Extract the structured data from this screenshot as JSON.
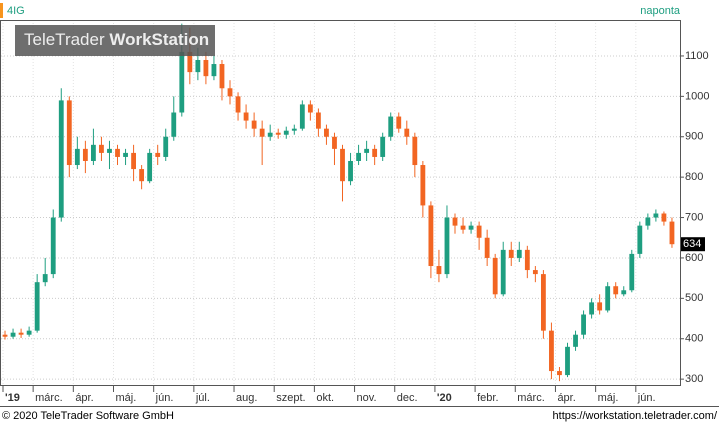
{
  "chart_data": {
    "type": "candlestick",
    "title": "4IG",
    "subtitle": "naponta",
    "watermark": [
      "TeleTrader ",
      "WorkStation"
    ],
    "footer_left": "© 2020 TeleTrader Software GmbH",
    "footer_right": "https://workstation.teletrader.com/",
    "up_color": "#1e9e80",
    "down_color": "#f26522",
    "xlim": [
      1.2,
      18.1
    ],
    "ylim": [
      283,
      1189
    ],
    "yticks": [
      300,
      400,
      500,
      600,
      700,
      800,
      900,
      1000,
      1100
    ],
    "xticks": [
      {
        "value": 1.25,
        "label": "'19"
      },
      {
        "value": 2,
        "label": "márc."
      },
      {
        "value": 3,
        "label": "ápr."
      },
      {
        "value": 4,
        "label": "máj."
      },
      {
        "value": 5,
        "label": "jún."
      },
      {
        "value": 6,
        "label": "júl."
      },
      {
        "value": 7,
        "label": "aug."
      },
      {
        "value": 8,
        "label": "szept."
      },
      {
        "value": 9,
        "label": "okt."
      },
      {
        "value": 10,
        "label": "nov."
      },
      {
        "value": 11,
        "label": "dec."
      },
      {
        "value": 12,
        "label": "'20"
      },
      {
        "value": 13,
        "label": "febr."
      },
      {
        "value": 14,
        "label": "márc."
      },
      {
        "value": 15,
        "label": "ápr."
      },
      {
        "value": 16,
        "label": "máj."
      },
      {
        "value": 17,
        "label": "jún."
      }
    ],
    "x": [
      1.3,
      1.5,
      1.7,
      1.9,
      2.1,
      2.3,
      2.5,
      2.7,
      2.9,
      3.1,
      3.3,
      3.5,
      3.7,
      3.9,
      4.1,
      4.3,
      4.5,
      4.7,
      4.9,
      5.1,
      5.3,
      5.5,
      5.7,
      5.9,
      6.1,
      6.3,
      6.5,
      6.7,
      6.9,
      7.1,
      7.3,
      7.5,
      7.7,
      7.9,
      8.1,
      8.3,
      8.5,
      8.7,
      8.9,
      9.1,
      9.3,
      9.5,
      9.7,
      9.9,
      10.1,
      10.3,
      10.5,
      10.7,
      10.9,
      11.1,
      11.3,
      11.5,
      11.7,
      11.9,
      12.1,
      12.3,
      12.5,
      12.7,
      12.9,
      13.1,
      13.3,
      13.5,
      13.7,
      13.9,
      14.1,
      14.3,
      14.5,
      14.7,
      14.9,
      15.1,
      15.3,
      15.5,
      15.7,
      15.9,
      16.1,
      16.3,
      16.5,
      16.7,
      16.9,
      17.1,
      17.3,
      17.5,
      17.7,
      17.9
    ],
    "open": [
      410,
      405,
      415,
      410,
      420,
      540,
      560,
      700,
      990,
      830,
      870,
      840,
      880,
      860,
      870,
      850,
      860,
      820,
      790,
      860,
      850,
      900,
      960,
      1110,
      1060,
      1090,
      1050,
      1080,
      1020,
      1000,
      960,
      940,
      920,
      900,
      910,
      905,
      915,
      920,
      980,
      960,
      920,
      900,
      870,
      790,
      840,
      860,
      870,
      850,
      900,
      950,
      920,
      900,
      830,
      730,
      580,
      560,
      700,
      680,
      670,
      680,
      650,
      600,
      510,
      620,
      600,
      620,
      570,
      560,
      420,
      320,
      310,
      380,
      410,
      460,
      490,
      470,
      530,
      510,
      520,
      610,
      680,
      700,
      710,
      690
    ],
    "high": [
      420,
      425,
      425,
      430,
      560,
      600,
      720,
      1020,
      1000,
      900,
      890,
      920,
      900,
      890,
      880,
      870,
      880,
      830,
      870,
      880,
      920,
      1000,
      1180,
      1170,
      1120,
      1110,
      1100,
      1090,
      1040,
      1010,
      980,
      960,
      940,
      930,
      920,
      925,
      930,
      990,
      990,
      970,
      930,
      910,
      880,
      860,
      880,
      890,
      880,
      910,
      960,
      960,
      940,
      910,
      840,
      740,
      620,
      730,
      710,
      700,
      690,
      690,
      670,
      610,
      640,
      640,
      640,
      630,
      580,
      570,
      440,
      330,
      390,
      420,
      470,
      500,
      510,
      540,
      540,
      530,
      620,
      690,
      710,
      720,
      715,
      700
    ],
    "low": [
      398,
      400,
      402,
      405,
      415,
      530,
      550,
      690,
      800,
      820,
      810,
      830,
      840,
      820,
      830,
      830,
      790,
      770,
      785,
      830,
      840,
      890,
      950,
      1030,
      1040,
      1030,
      1040,
      990,
      980,
      940,
      920,
      900,
      830,
      890,
      895,
      895,
      905,
      915,
      940,
      900,
      880,
      830,
      740,
      780,
      830,
      840,
      830,
      840,
      890,
      910,
      880,
      800,
      700,
      550,
      540,
      550,
      660,
      660,
      660,
      620,
      580,
      500,
      505,
      580,
      590,
      550,
      540,
      400,
      300,
      295,
      305,
      370,
      400,
      450,
      460,
      465,
      500,
      505,
      515,
      600,
      670,
      690,
      680,
      625
    ],
    "close": [
      405,
      415,
      410,
      420,
      540,
      560,
      700,
      990,
      830,
      870,
      840,
      880,
      860,
      870,
      850,
      860,
      820,
      790,
      860,
      850,
      900,
      960,
      1110,
      1060,
      1090,
      1050,
      1080,
      1020,
      1000,
      960,
      940,
      920,
      900,
      910,
      905,
      915,
      920,
      980,
      960,
      920,
      900,
      870,
      790,
      840,
      860,
      870,
      850,
      900,
      950,
      920,
      900,
      830,
      730,
      580,
      560,
      700,
      680,
      670,
      680,
      650,
      600,
      510,
      620,
      600,
      620,
      570,
      560,
      420,
      320,
      310,
      380,
      410,
      460,
      490,
      470,
      530,
      510,
      520,
      610,
      680,
      700,
      710,
      690,
      634
    ]
  }
}
